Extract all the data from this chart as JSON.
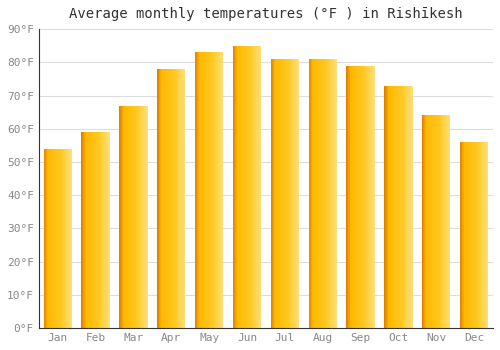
{
  "title": "Average monthly temperatures (°F ) in Rishīkesh",
  "months": [
    "Jan",
    "Feb",
    "Mar",
    "Apr",
    "May",
    "Jun",
    "Jul",
    "Aug",
    "Sep",
    "Oct",
    "Nov",
    "Dec"
  ],
  "values": [
    54,
    59,
    67,
    78,
    83,
    85,
    81,
    81,
    79,
    73,
    64,
    56
  ],
  "ylim": [
    0,
    90
  ],
  "yticks": [
    0,
    10,
    20,
    30,
    40,
    50,
    60,
    70,
    80,
    90
  ],
  "ytick_labels": [
    "0°F",
    "10°F",
    "20°F",
    "30°F",
    "40°F",
    "50°F",
    "60°F",
    "70°F",
    "80°F",
    "90°F"
  ],
  "bar_color_left": "#E08000",
  "bar_color_center": "#FFB800",
  "bar_color_right": "#FFE080",
  "background_color": "#ffffff",
  "grid_color": "#dddddd",
  "title_fontsize": 10,
  "tick_fontsize": 8,
  "font_family": "monospace"
}
